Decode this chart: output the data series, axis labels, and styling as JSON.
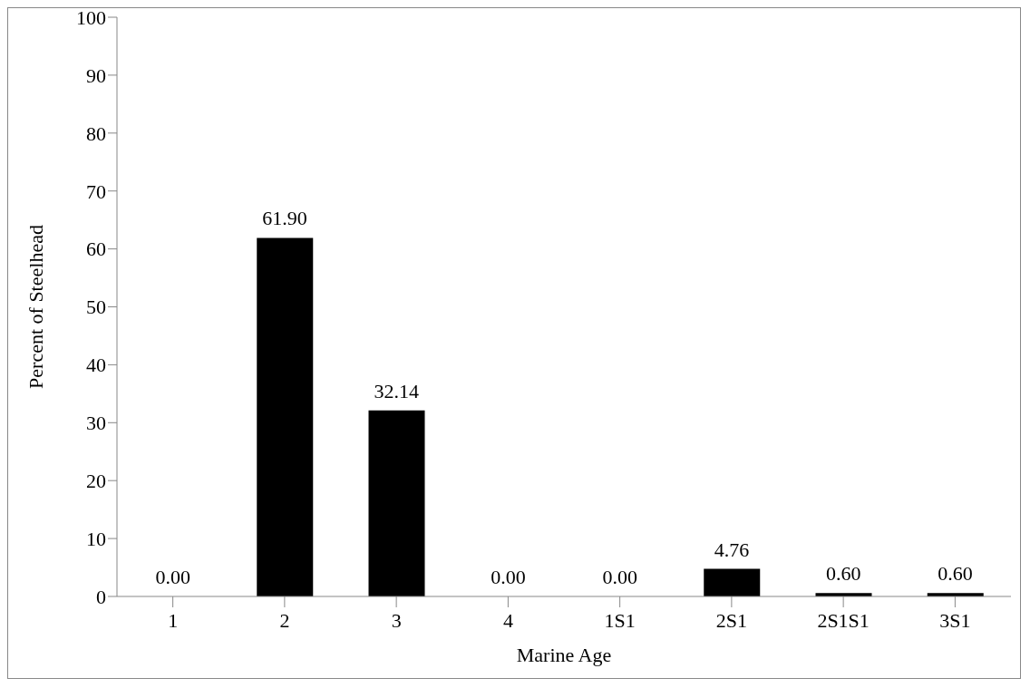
{
  "chart_data": {
    "type": "bar",
    "xlabel": "Marine Age",
    "ylabel": "Percent of Steelhead",
    "categories": [
      "1",
      "2",
      "3",
      "4",
      "1S1",
      "2S1",
      "2S1S1",
      "3S1"
    ],
    "values": [
      0.0,
      61.9,
      32.14,
      0.0,
      0.0,
      4.76,
      0.6,
      0.6
    ],
    "value_labels": [
      "0.00",
      "61.90",
      "32.14",
      "0.00",
      "0.00",
      "4.76",
      "0.60",
      "0.60"
    ],
    "color": "#000000",
    "ylim": [
      0,
      100
    ],
    "yticks": [
      0,
      10,
      20,
      30,
      40,
      50,
      60,
      70,
      80,
      90,
      100
    ],
    "grid": false,
    "legend": false
  }
}
